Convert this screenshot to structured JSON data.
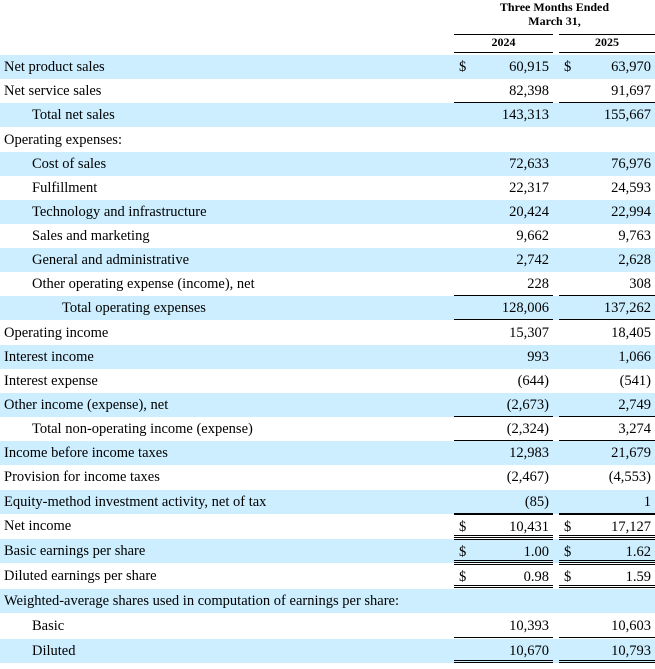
{
  "header": {
    "period": "Three Months Ended",
    "date": "March 31,",
    "col1": "2024",
    "col2": "2025"
  },
  "rows": [
    {
      "label": "Net product sales",
      "indent": 0,
      "v1": "60,915",
      "v2": "63,970",
      "dollar": true
    },
    {
      "label": "Net service sales",
      "indent": 0,
      "v1": "82,398",
      "v2": "91,697",
      "under": true
    },
    {
      "label": "Total net sales",
      "indent": 2,
      "v1": "143,313",
      "v2": "155,667"
    },
    {
      "label": "Operating expenses:",
      "indent": 0,
      "v1": "",
      "v2": ""
    },
    {
      "label": "Cost of sales",
      "indent": 1,
      "v1": "72,633",
      "v2": "76,976"
    },
    {
      "label": "Fulfillment",
      "indent": 1,
      "v1": "22,317",
      "v2": "24,593"
    },
    {
      "label": "Technology and infrastructure",
      "indent": 1,
      "v1": "20,424",
      "v2": "22,994"
    },
    {
      "label": "Sales and marketing",
      "indent": 1,
      "v1": "9,662",
      "v2": "9,763"
    },
    {
      "label": "General and administrative",
      "indent": 1,
      "v1": "2,742",
      "v2": "2,628"
    },
    {
      "label": "Other operating expense (income), net",
      "indent": 1,
      "v1": "228",
      "v2": "308",
      "under": true
    },
    {
      "label": "Total operating expenses",
      "indent": 3,
      "v1": "128,006",
      "v2": "137,262",
      "under": true
    },
    {
      "label": "Operating income",
      "indent": 0,
      "v1": "15,307",
      "v2": "18,405"
    },
    {
      "label": "Interest income",
      "indent": 0,
      "v1": "993",
      "v2": "1,066"
    },
    {
      "label": "Interest expense",
      "indent": 0,
      "v1": "(644)",
      "v2": "(541)"
    },
    {
      "label": "Other income (expense), net",
      "indent": 0,
      "v1": "(2,673)",
      "v2": "2,749",
      "under": true
    },
    {
      "label": "Total non-operating income (expense)",
      "indent": 1,
      "v1": "(2,324)",
      "v2": "3,274",
      "under": true
    },
    {
      "label": "Income before income taxes",
      "indent": 0,
      "v1": "12,983",
      "v2": "21,679"
    },
    {
      "label": "Provision for income taxes",
      "indent": 0,
      "v1": "(2,467)",
      "v2": "(4,553)"
    },
    {
      "label": "Equity-method investment activity, net of tax",
      "indent": 0,
      "v1": "(85)",
      "v2": "1",
      "under": true
    },
    {
      "label": "Net income",
      "indent": 0,
      "v1": "10,431",
      "v2": "17,127",
      "dollar": true,
      "dbl": true
    },
    {
      "label": "Basic earnings per share",
      "indent": 0,
      "v1": "1.00",
      "v2": "1.62",
      "dollar": true,
      "dbl": true
    },
    {
      "label": "Diluted earnings per share",
      "indent": 0,
      "v1": "0.98",
      "v2": "1.59",
      "dollar": true,
      "dbl": true
    },
    {
      "label": "Weighted-average shares used in computation of earnings per share:",
      "indent": 0,
      "v1": "",
      "v2": ""
    },
    {
      "label": "Basic",
      "indent": 1,
      "v1": "10,393",
      "v2": "10,603",
      "under": true
    },
    {
      "label": "Diluted",
      "indent": 1,
      "v1": "10,670",
      "v2": "10,793",
      "dbl": true
    }
  ],
  "currency_symbol": "$",
  "colors": {
    "shade": "#cceeff"
  }
}
